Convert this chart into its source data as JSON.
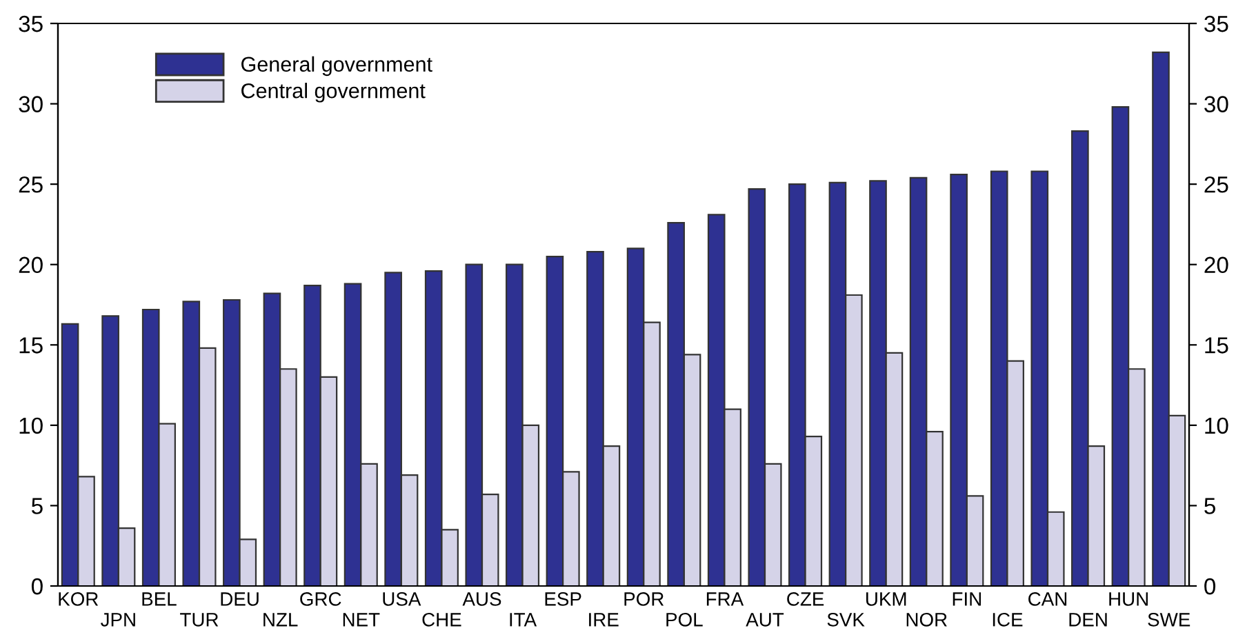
{
  "chart_data": {
    "type": "bar",
    "categories": [
      "KOR",
      "JPN",
      "BEL",
      "TUR",
      "DEU",
      "NZL",
      "GRC",
      "NET",
      "USA",
      "CHE",
      "AUS",
      "ITA",
      "ESP",
      "IRE",
      "POR",
      "POL",
      "FRA",
      "AUT",
      "CZE",
      "SVK",
      "UKM",
      "NOR",
      "FIN",
      "ICE",
      "CAN",
      "DEN",
      "HUN",
      "SWE"
    ],
    "series": [
      {
        "name": "General government",
        "color": "#2e3192",
        "values": [
          16.3,
          16.8,
          17.2,
          17.7,
          17.8,
          18.2,
          18.7,
          18.8,
          19.5,
          19.6,
          20.0,
          20.0,
          20.5,
          20.8,
          21.0,
          22.6,
          23.1,
          24.7,
          25.0,
          25.1,
          25.2,
          25.4,
          25.6,
          25.8,
          25.8,
          28.3,
          29.8,
          33.2
        ]
      },
      {
        "name": "Central government",
        "color": "#d5d3e8",
        "values": [
          6.8,
          3.6,
          10.1,
          14.8,
          2.9,
          13.5,
          13.0,
          7.6,
          6.9,
          3.5,
          5.7,
          10.0,
          7.1,
          8.7,
          16.4,
          14.4,
          11.0,
          7.6,
          9.3,
          18.1,
          14.5,
          9.6,
          5.6,
          14.0,
          4.6,
          8.7,
          13.5,
          10.6
        ]
      }
    ],
    "ylim": [
      0,
      35
    ],
    "yticks": [
      0,
      5,
      10,
      15,
      20,
      25,
      30,
      35
    ],
    "y2lim": [
      0,
      35
    ],
    "y2ticks": [
      0,
      5,
      10,
      15,
      20,
      25,
      30,
      35
    ],
    "grid": false,
    "legend": "top left"
  }
}
